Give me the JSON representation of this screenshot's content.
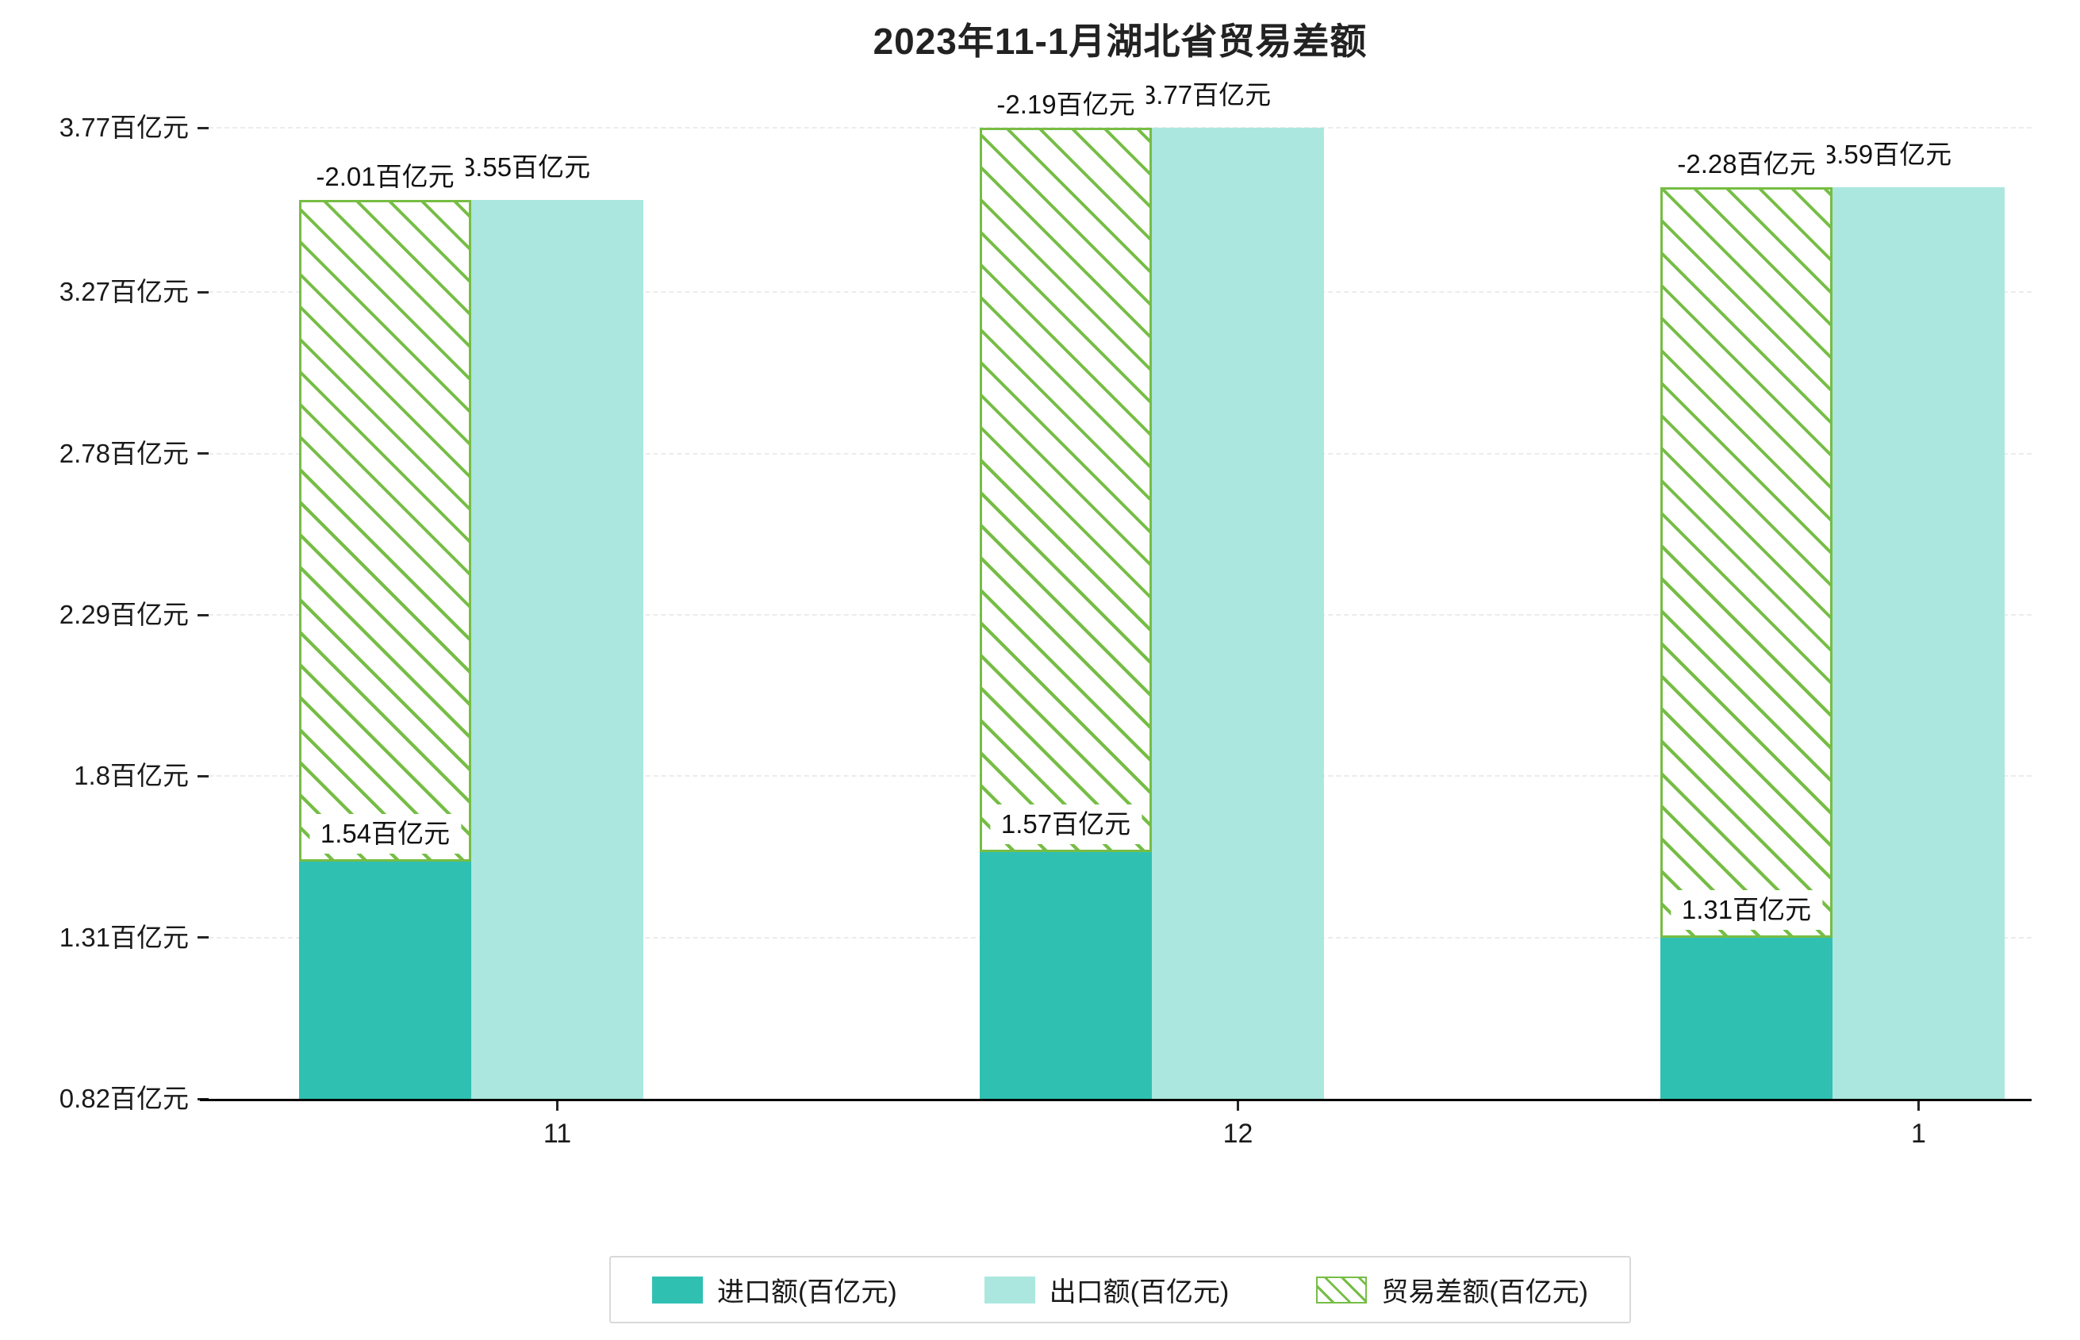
{
  "chart_data": {
    "type": "bar",
    "title": "2023年11-1月湖北省贸易差额",
    "unit": "百亿元",
    "categories": [
      "11",
      "12",
      "1"
    ],
    "ylim": [
      0.82,
      3.77
    ],
    "yticks": [
      {
        "value": 0.82,
        "label": "0.82百亿元"
      },
      {
        "value": 1.31,
        "label": "1.31百亿元"
      },
      {
        "value": 1.8,
        "label": "1.8百亿元"
      },
      {
        "value": 2.29,
        "label": "2.29百亿元"
      },
      {
        "value": 2.78,
        "label": "2.78百亿元"
      },
      {
        "value": 3.27,
        "label": "3.27百亿元"
      },
      {
        "value": 3.77,
        "label": "3.77百亿元"
      }
    ],
    "series": [
      {
        "name": "进口额(百亿元)",
        "style": "solid",
        "color": "#2fc0b2",
        "values": [
          1.54,
          1.57,
          1.31
        ],
        "labels": [
          "1.54百亿元",
          "1.57百亿元",
          "1.31百亿元"
        ]
      },
      {
        "name": "出口额(百亿元)",
        "style": "solid",
        "color": "#abe7df",
        "values": [
          3.55,
          3.77,
          3.59
        ],
        "labels": [
          "3.55百亿元",
          "3.77百亿元",
          "3.59百亿元"
        ]
      },
      {
        "name": "贸易差额(百亿元)",
        "style": "hatched",
        "color": "#76bd45",
        "values": [
          -2.01,
          -2.19,
          -2.28
        ],
        "labels": [
          "-2.01百亿元",
          "-2.19百亿元",
          "-2.28百亿元"
        ]
      }
    ],
    "legend_position": "bottom",
    "grid": true
  }
}
